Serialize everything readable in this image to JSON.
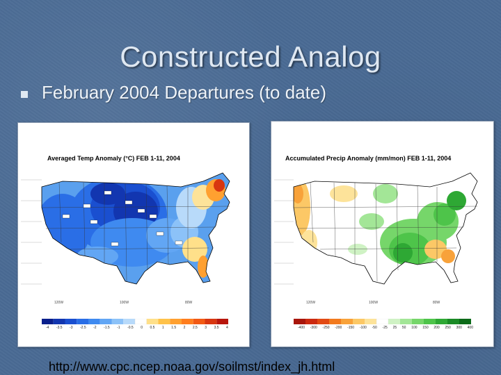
{
  "slide": {
    "title": "Constructed Analog",
    "bullet": "February 2004 Departures (to date)",
    "url": "http://www.cpc.ncep.noaa.gov/soilmst/index_jh.html"
  },
  "left_map": {
    "title": "Averaged Temp Anomaly (°C) FEB 1-11, 2004",
    "colorbar_labels": [
      "-4",
      "-3.5",
      "-3",
      "-2.5",
      "-2",
      "-1.5",
      "-1",
      "-0.5",
      "0",
      "0.5",
      "1",
      "1.5",
      "2",
      "2.5",
      "3",
      "3.5",
      "4"
    ],
    "colors": [
      "#0a1f8c",
      "#1236b0",
      "#1a4fd0",
      "#2a6ee6",
      "#3f8af0",
      "#62a6f4",
      "#8cc2f8",
      "#b8dafa",
      "#ffffff",
      "#ffe08a",
      "#ffc24a",
      "#ffa030",
      "#ff7e1e",
      "#f25a14",
      "#d83610",
      "#b8160c"
    ]
  },
  "right_map": {
    "title": "Accumulated Precip Anomaly (mm/mon) FEB 1-11, 2004",
    "colorbar_labels": [
      "-400",
      "-300",
      "-250",
      "-200",
      "-150",
      "-100",
      "-50",
      "-25",
      "25",
      "50",
      "100",
      "150",
      "200",
      "250",
      "300",
      "400"
    ],
    "colors": [
      "#a8160c",
      "#cc2a10",
      "#e24a14",
      "#f27a1e",
      "#f8a23a",
      "#fcc866",
      "#fde39a",
      "#ffffff",
      "#cff2c4",
      "#a3e697",
      "#76d66a",
      "#4ec44a",
      "#2ea834",
      "#1a8a26",
      "#0c6a18"
    ]
  }
}
